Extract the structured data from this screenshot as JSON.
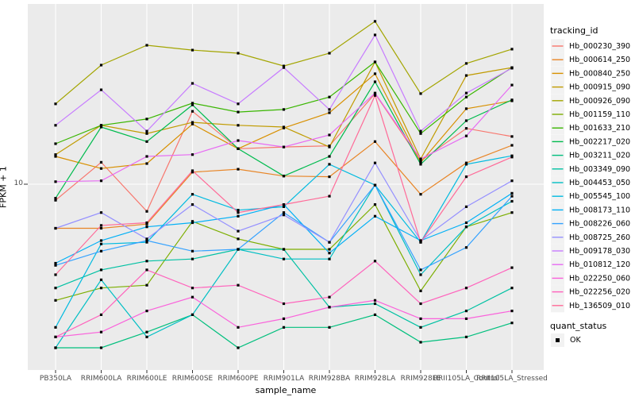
{
  "figure": {
    "kind": "ggplot2 expression line plot",
    "background": "#FFFFFF",
    "panel_background": "#EBEBEB",
    "grid_color": "#FFFFFF",
    "axis_text_color": "#4D4D4D",
    "title_text_color": "#000000",
    "point_color": "#000000",
    "legend_key_background": "#F2F2F2"
  },
  "axes": {
    "x_title": "sample_name",
    "y_title": "FPKM + 1",
    "y_tick_label": "10"
  },
  "legend": {
    "tracking_title": "tracking_id",
    "quant_title": "quant_status",
    "quant_items": [
      {
        "label": "OK",
        "marker": "filled-square"
      }
    ]
  },
  "chart_data": {
    "type": "line",
    "title": "",
    "xlabel": "sample_name",
    "ylabel": "FPKM + 1",
    "x_axis": {
      "categories": [
        "PB350LA",
        "RRIM600LA",
        "RRIM600LE",
        "RRIM600SE",
        "RRIM600PE",
        "RRIM901LA",
        "RRIM928BA",
        "RRIM928LA",
        "RRIM928LE",
        "RRII105LA_Control",
        "RRII105LA_Stressed"
      ]
    },
    "y_axis": {
      "scale": "log10",
      "tick_values": [
        10
      ],
      "tick_labels": [
        "10"
      ],
      "approx_range": [
        1.4,
        70
      ]
    },
    "grid": {
      "vertical": "one-per-category",
      "horizontal_at": [
        10
      ],
      "color": "#FFFFFF"
    },
    "legend_title": "tracking_id",
    "legend_position": "right",
    "point_marker": {
      "shape": "filled-square",
      "color": "#000000",
      "meaning": "quant_status = OK"
    },
    "series": [
      {
        "name": "Hb_000230_390",
        "color": "#F8766D",
        "values": [
          8.3,
          12.9,
          7.3,
          23.3,
          15.1,
          15.4,
          15.6,
          28.6,
          13.1,
          19.1,
          17.4
        ]
      },
      {
        "name": "Hb_000614_250",
        "color": "#E88526",
        "values": [
          6.0,
          6.0,
          6.3,
          11.5,
          11.9,
          11.0,
          10.9,
          16.4,
          8.9,
          12.8,
          15.7
        ]
      },
      {
        "name": "Hb_000840_250",
        "color": "#D89000",
        "values": [
          13.8,
          12.0,
          12.7,
          20.1,
          15.1,
          19.2,
          22.9,
          36.0,
          12.9,
          24.0,
          26.3
        ]
      },
      {
        "name": "Hb_000915_090",
        "color": "#C09B00",
        "values": [
          14.1,
          19.8,
          18.0,
          20.5,
          19.8,
          19.4,
          15.4,
          41.3,
          13.4,
          35.3,
          38.7
        ]
      },
      {
        "name": "Hb_000926_090",
        "color": "#A3A500",
        "values": [
          25.4,
          39.8,
          50.1,
          47.4,
          45.7,
          39.4,
          45.7,
          66.1,
          28.6,
          40.6,
          47.9
        ]
      },
      {
        "name": "Hb_001159_110",
        "color": "#7CAE00",
        "values": [
          2.6,
          3.0,
          3.1,
          6.5,
          5.3,
          4.7,
          4.7,
          7.9,
          2.9,
          6.1,
          7.2
        ]
      },
      {
        "name": "Hb_001633_210",
        "color": "#39B600",
        "values": [
          16.0,
          19.8,
          21.3,
          25.6,
          23.1,
          23.8,
          27.5,
          41.3,
          18.0,
          27.5,
          38.7
        ]
      },
      {
        "name": "Hb_002217_020",
        "color": "#00BB4E",
        "values": [
          8.5,
          19.4,
          16.4,
          25.1,
          15.1,
          11.0,
          13.8,
          32.8,
          12.6,
          20.9,
          26.6
        ]
      },
      {
        "name": "Hb_003211_020",
        "color": "#00BF7D",
        "values": [
          1.5,
          1.5,
          1.8,
          2.2,
          1.5,
          1.9,
          1.9,
          2.2,
          1.6,
          1.7,
          2.0
        ]
      },
      {
        "name": "Hb_003349_090",
        "color": "#00C1A3",
        "values": [
          3.0,
          3.7,
          4.1,
          4.2,
          4.7,
          4.7,
          2.4,
          2.5,
          1.9,
          2.3,
          3.0
        ]
      },
      {
        "name": "Hb_004453_050",
        "color": "#00BFC4",
        "values": [
          1.5,
          3.3,
          1.7,
          2.2,
          4.7,
          4.2,
          4.2,
          9.9,
          3.5,
          6.1,
          8.2
        ]
      },
      {
        "name": "Hb_005545_100",
        "color": "#00BAE0",
        "values": [
          1.9,
          5.0,
          5.1,
          8.9,
          7.4,
          7.7,
          12.6,
          9.9,
          5.1,
          12.6,
          13.9
        ]
      },
      {
        "name": "Hb_008173_110",
        "color": "#00B0F6",
        "values": [
          4.0,
          5.2,
          6.1,
          6.4,
          6.9,
          7.9,
          4.5,
          6.9,
          5.2,
          6.4,
          9.0
        ]
      },
      {
        "name": "Hb_008226_060",
        "color": "#35A2FF",
        "values": [
          3.9,
          4.6,
          5.2,
          4.6,
          4.7,
          7.2,
          5.1,
          9.9,
          3.7,
          4.8,
          8.7
        ]
      },
      {
        "name": "Hb_008725_260",
        "color": "#9590FF",
        "values": [
          6.0,
          7.2,
          5.3,
          7.9,
          5.8,
          7.0,
          5.1,
          12.8,
          5.2,
          7.7,
          10.4
        ]
      },
      {
        "name": "Hb_009178_030",
        "color": "#C77CFF",
        "values": [
          19.8,
          29.9,
          18.5,
          32.2,
          25.4,
          38.7,
          23.8,
          56.5,
          18.5,
          28.8,
          38.4
        ]
      },
      {
        "name": "Hb_010812_120",
        "color": "#E76BF3",
        "values": [
          10.3,
          10.4,
          13.8,
          14.1,
          16.6,
          15.4,
          17.7,
          28.8,
          13.4,
          17.5,
          31.6
        ]
      },
      {
        "name": "Hb_022250_060",
        "color": "#FA62DB",
        "values": [
          1.7,
          1.8,
          2.3,
          2.7,
          1.9,
          2.1,
          2.4,
          2.6,
          2.1,
          2.1,
          2.3
        ]
      },
      {
        "name": "Hb_022256_020",
        "color": "#FF62BC",
        "values": [
          1.7,
          2.2,
          3.7,
          3.0,
          3.1,
          2.5,
          2.7,
          4.1,
          2.5,
          3.0,
          3.8
        ]
      },
      {
        "name": "Hb_136509_010",
        "color": "#FF6A98",
        "values": [
          3.5,
          6.2,
          6.4,
          11.7,
          7.2,
          7.9,
          8.7,
          28.0,
          5.1,
          10.9,
          13.7
        ]
      }
    ]
  }
}
